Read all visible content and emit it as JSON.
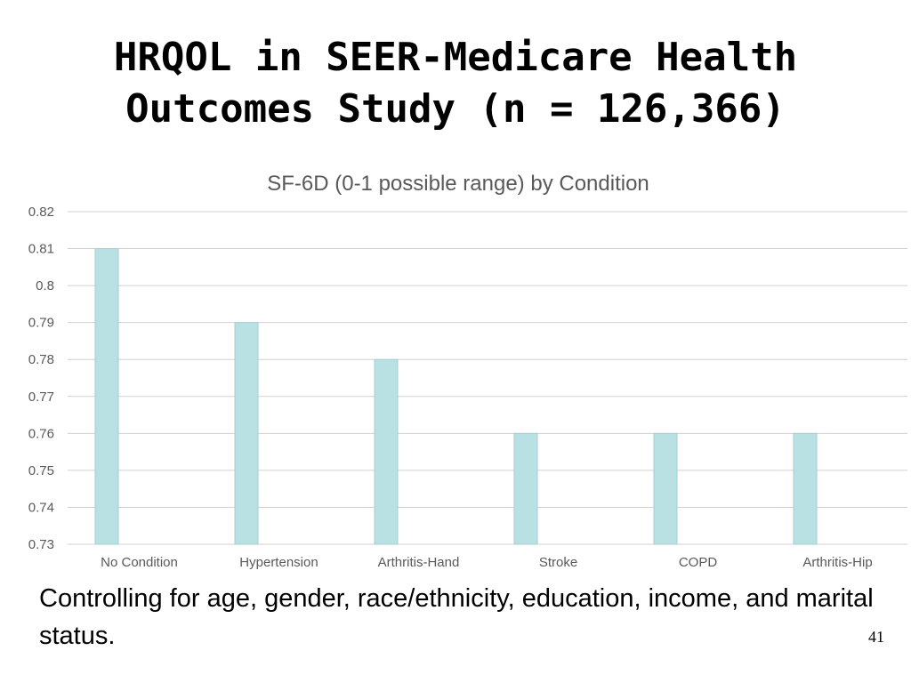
{
  "slide": {
    "title_line1": "HRQOL in SEER-Medicare Health",
    "title_line2": "Outcomes Study (n = 126,366)",
    "footnote": "Controlling for age, gender, race/ethnicity, education, income, and marital status.",
    "page_number": "41"
  },
  "chart_data": {
    "type": "bar",
    "title": "SF-6D (0-1 possible range) by Condition",
    "xlabel": "",
    "ylabel": "",
    "categories": [
      "No Condition",
      "Hypertension",
      "Arthritis-Hand",
      "Stroke",
      "COPD",
      "Arthritis-Hip"
    ],
    "values": [
      0.81,
      0.79,
      0.78,
      0.76,
      0.76,
      0.76
    ],
    "ylim": [
      0.73,
      0.82
    ],
    "yticks": [
      "0.73",
      "0.74",
      "0.75",
      "0.76",
      "0.77",
      "0.78",
      "0.79",
      "0.8",
      "0.81",
      "0.82"
    ],
    "grid": true,
    "legend": "none",
    "bar_color": "#b9e0e3"
  }
}
